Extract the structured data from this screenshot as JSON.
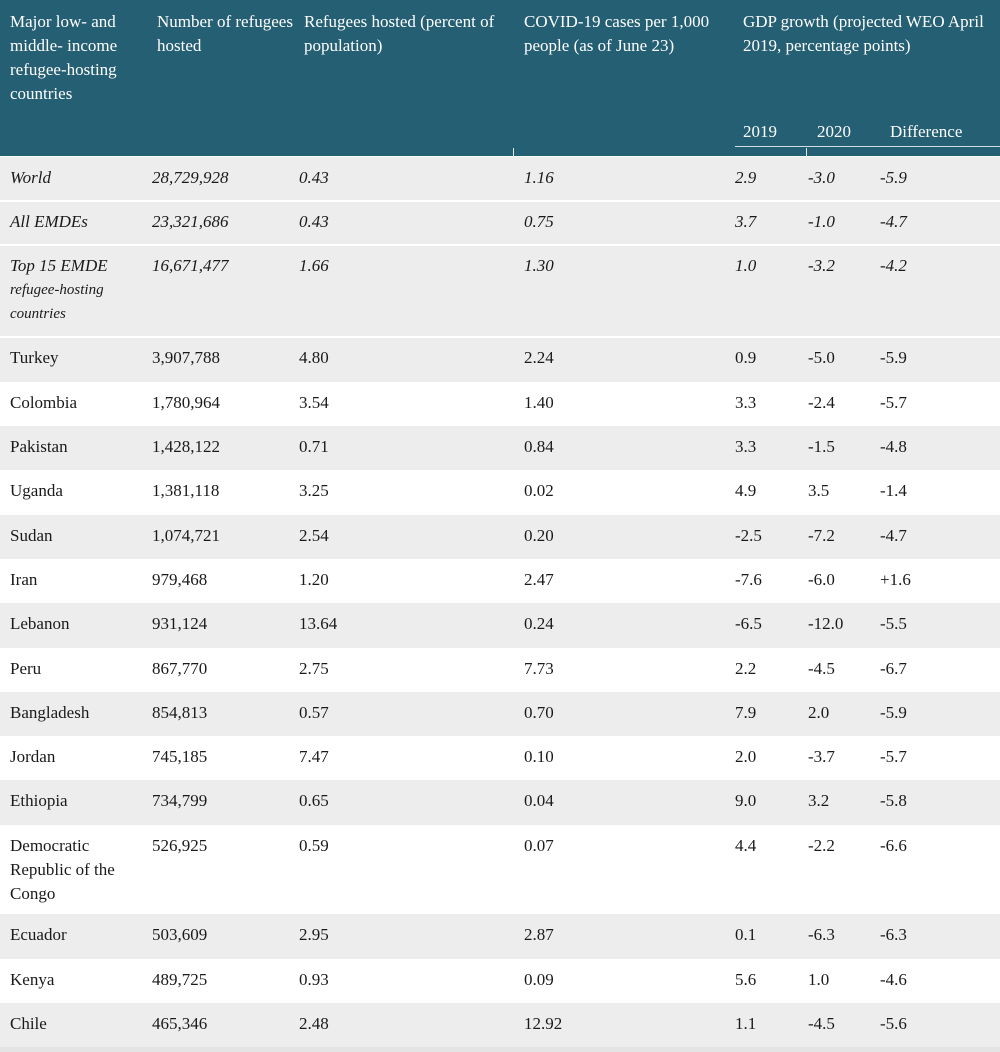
{
  "headers": {
    "country": "Major low- and middle- income refugee-hosting countries",
    "refugees": "Number of refugees hosted",
    "percent": "Refugees hosted (percent of population)",
    "covid": "COVID-19 cases per 1,000 people (as of June 23)",
    "gdp": "GDP growth (projected WEO April 2019, percentage points)",
    "gdp_sub": {
      "y2019": "2019",
      "y2020": "2020",
      "diff": "Difference"
    }
  },
  "rows": [
    {
      "country": "World",
      "refugees": "28,729,928",
      "percent": "0.43",
      "covid": "1.16",
      "g2019": "2.9",
      "g2020": "-3.0",
      "diff": "-5.9"
    },
    {
      "country": "All EMDEs",
      "refugees": "23,321,686",
      "percent": "0.43",
      "covid": "0.75",
      "g2019": "3.7",
      "g2020": "-1.0",
      "diff": "-4.7"
    },
    {
      "country": "Top 15 EMDE",
      "country_line2": "refugee-hosting countries",
      "refugees": "16,671,477",
      "percent": "1.66",
      "covid": "1.30",
      "g2019": "1.0",
      "g2020": "-3.2",
      "diff": "-4.2"
    },
    {
      "country": "Turkey",
      "refugees": "3,907,788",
      "percent": "4.80",
      "covid": "2.24",
      "g2019": "0.9",
      "g2020": "-5.0",
      "diff": "-5.9"
    },
    {
      "country": "Colombia",
      "refugees": "1,780,964",
      "percent": "3.54",
      "covid": "1.40",
      "g2019": "3.3",
      "g2020": "-2.4",
      "diff": "-5.7"
    },
    {
      "country": "Pakistan",
      "refugees": "1,428,122",
      "percent": "0.71",
      "covid": "0.84",
      "g2019": "3.3",
      "g2020": "-1.5",
      "diff": "-4.8"
    },
    {
      "country": "Uganda",
      "refugees": "1,381,118",
      "percent": "3.25",
      "covid": "0.02",
      "g2019": "4.9",
      "g2020": "3.5",
      "diff": "-1.4"
    },
    {
      "country": "Sudan",
      "refugees": "1,074,721",
      "percent": "2.54",
      "covid": "0.20",
      "g2019": "-2.5",
      "g2020": "-7.2",
      "diff": "-4.7"
    },
    {
      "country": "Iran",
      "refugees": "979,468",
      "percent": "1.20",
      "covid": "2.47",
      "g2019": "-7.6",
      "g2020": "-6.0",
      "diff": "+1.6"
    },
    {
      "country": "Lebanon",
      "refugees": "931,124",
      "percent": "13.64",
      "covid": "0.24",
      "g2019": "-6.5",
      "g2020": "-12.0",
      "diff": "-5.5"
    },
    {
      "country": "Peru",
      "refugees": "867,770",
      "percent": "2.75",
      "covid": "7.73",
      "g2019": "2.2",
      "g2020": "-4.5",
      "diff": "-6.7"
    },
    {
      "country": "Bangladesh",
      "refugees": "854,813",
      "percent": "0.57",
      "covid": "0.70",
      "g2019": "7.9",
      "g2020": "2.0",
      "diff": "-5.9"
    },
    {
      "country": "Jordan",
      "refugees": "745,185",
      "percent": "7.47",
      "covid": "0.10",
      "g2019": "2.0",
      "g2020": "-3.7",
      "diff": "-5.7"
    },
    {
      "country": "Ethiopia",
      "refugees": "734,799",
      "percent": "0.65",
      "covid": "0.04",
      "g2019": "9.0",
      "g2020": "3.2",
      "diff": "-5.8"
    },
    {
      "country": "Democratic Republic of the Congo",
      "refugees": "526,925",
      "percent": "0.59",
      "covid": "0.07",
      "g2019": "4.4",
      "g2020": "-2.2",
      "diff": "-6.6"
    },
    {
      "country": "Ecuador",
      "refugees": "503,609",
      "percent": "2.95",
      "covid": "2.87",
      "g2019": "0.1",
      "g2020": "-6.3",
      "diff": "-6.3"
    },
    {
      "country": "Kenya",
      "refugees": "489,725",
      "percent": "0.93",
      "covid": "0.09",
      "g2019": "5.6",
      "g2020": "1.0",
      "diff": "-4.6"
    },
    {
      "country": "Chile",
      "refugees": "465,346",
      "percent": "2.48",
      "covid": "12.92",
      "g2019": "1.1",
      "g2020": "-4.5",
      "diff": "-5.6"
    }
  ]
}
